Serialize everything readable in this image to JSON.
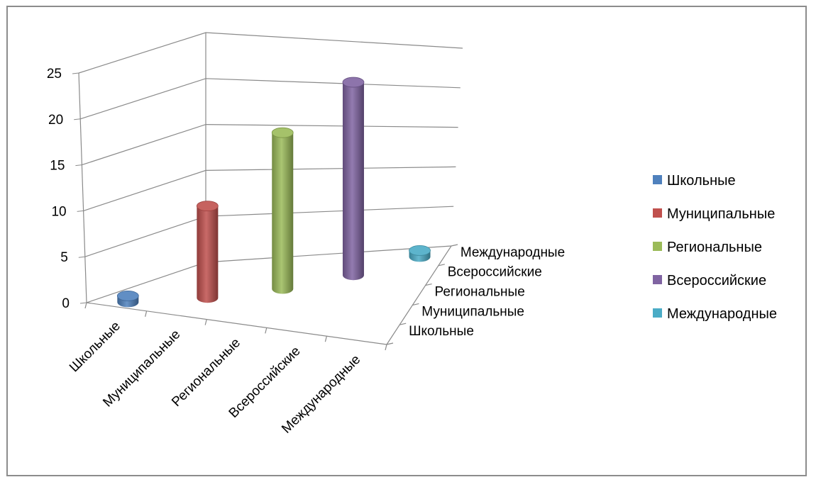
{
  "chart_data": {
    "type": "bar",
    "style": "3d-cylinder",
    "categories": [
      "Школьные",
      "Муниципальные",
      "Региональные",
      "Всероссийские",
      "Международные"
    ],
    "series": [
      {
        "name": "Школьные",
        "color": "#4F81BD",
        "category": "Школьные",
        "value": 0
      },
      {
        "name": "Муниципальные",
        "color": "#C0504D",
        "category": "Муниципальные",
        "value": 10
      },
      {
        "name": "Региональные",
        "color": "#9BBB59",
        "category": "Региональные",
        "value": 17
      },
      {
        "name": "Всероссийские",
        "color": "#8064A2",
        "category": "Всероссийские",
        "value": 21
      },
      {
        "name": "Международные",
        "color": "#4BACC6",
        "category": "Международные",
        "value": 0
      }
    ],
    "yticks": [
      "0",
      "5",
      "10",
      "15",
      "20",
      "25"
    ],
    "ylim": [
      0,
      25
    ],
    "depth_labels": [
      "Школьные",
      "Муниципальные",
      "Региональные",
      "Всероссийские",
      "Международные"
    ],
    "legend_position": "right",
    "grid": true
  }
}
